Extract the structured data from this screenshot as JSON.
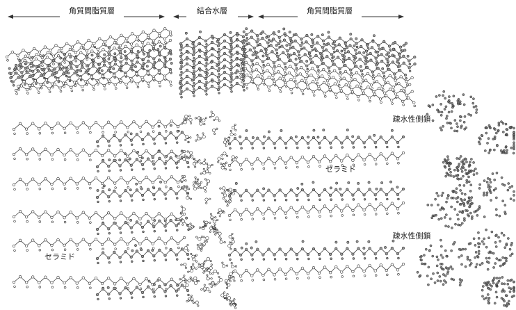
{
  "layers": [
    {
      "label": "角質間脂質層"
    },
    {
      "label": "結合水層"
    },
    {
      "label": "角質間脂質層"
    }
  ],
  "annotations": {
    "ceramide": [
      "セラミド",
      "セラミド"
    ],
    "side_chain": [
      "疎水性側鎖",
      "疎水性側鎖"
    ]
  }
}
